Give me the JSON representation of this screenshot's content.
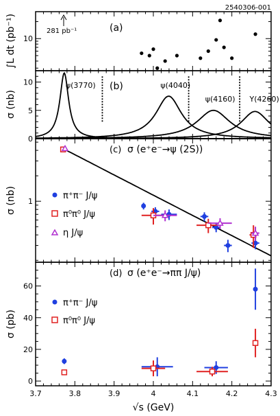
{
  "figure_id": "2540306-001",
  "x_axis": {
    "label": "√s (GeV)",
    "ticks": [
      "3.7",
      "3.8",
      "3.9",
      "4",
      "4.1",
      "4.2",
      "4.3"
    ],
    "range": [
      3.7,
      4.3
    ]
  },
  "chart_data": [
    {
      "panel": "a",
      "type": "scatter",
      "panel_label": "(a)",
      "ylabel": "∫L dt (pb⁻¹)",
      "yscale": "log",
      "ylim": [
        2.7,
        30
      ],
      "yticks": [
        "10"
      ],
      "annotation": "281 pb⁻¹",
      "annotation_x": 3.77,
      "points": [
        {
          "x": 3.97,
          "y": 5.5
        },
        {
          "x": 3.99,
          "y": 5.0
        },
        {
          "x": 4.0,
          "y": 6.5
        },
        {
          "x": 4.01,
          "y": 3.0
        },
        {
          "x": 4.03,
          "y": 4.0
        },
        {
          "x": 4.06,
          "y": 5.0
        },
        {
          "x": 4.12,
          "y": 4.5
        },
        {
          "x": 4.14,
          "y": 6.0
        },
        {
          "x": 4.16,
          "y": 9.5
        },
        {
          "x": 4.17,
          "y": 21.0
        },
        {
          "x": 4.18,
          "y": 7.0
        },
        {
          "x": 4.2,
          "y": 4.5
        },
        {
          "x": 4.26,
          "y": 12.0
        }
      ]
    },
    {
      "panel": "b",
      "type": "line",
      "panel_label": "(b)",
      "ylabel": "σ (nb)",
      "ylim": [
        0,
        12
      ],
      "yticks": [
        "0",
        "5",
        "10"
      ],
      "series": [
        {
          "name": "ψ(3770)",
          "mass": 3.773,
          "width": 0.027,
          "peak": 11.6
        },
        {
          "name": "ψ(4040)",
          "mass": 4.039,
          "width": 0.08,
          "peak": 7.5
        },
        {
          "name": "ψ(4160)",
          "mass": 4.153,
          "width": 0.103,
          "peak": 5.0
        },
        {
          "name": "Y(4260)",
          "mass": 4.259,
          "width": 0.088,
          "peak": 4.8
        }
      ],
      "dashed_x": [
        3.87,
        4.09,
        4.22
      ]
    },
    {
      "panel": "c",
      "type": "scatter",
      "panel_label": "(c)",
      "title": "σ (e⁺e⁻→ψ (2S))",
      "ylabel": "σ (nb)",
      "yscale": "log",
      "ylim": [
        0.19,
        5.5
      ],
      "yticks": [
        "1"
      ],
      "legend": [
        "π⁺π⁻ J/ψ",
        "π⁰π⁰ J/ψ",
        "η J/ψ"
      ],
      "series": [
        {
          "name": "π⁺π⁻ J/ψ",
          "color": "#1f3fe0",
          "marker": "circle",
          "points": [
            {
              "x": 3.975,
              "y": 0.88,
              "ex": 0.005,
              "ey": 0.08
            },
            {
              "x": 4.005,
              "y": 0.76,
              "ex": 0.01,
              "ey": 0.09
            },
            {
              "x": 4.04,
              "y": 0.7,
              "ex": 0.02,
              "ey": 0.1
            },
            {
              "x": 4.13,
              "y": 0.66,
              "ex": 0.01,
              "ey": 0.08
            },
            {
              "x": 4.16,
              "y": 0.49,
              "ex": 0.01,
              "ey": 0.06
            },
            {
              "x": 4.19,
              "y": 0.3,
              "ex": 0.01,
              "ey": 0.05
            },
            {
              "x": 4.26,
              "y": 0.32,
              "ex": 0.01,
              "ey": 0.05
            }
          ]
        },
        {
          "name": "π⁰π⁰ J/ψ",
          "color": "#e02020",
          "marker": "square",
          "points": [
            {
              "x": 3.77,
              "y": 4.1,
              "ex": 0.0,
              "ey": 0.2
            },
            {
              "x": 4.0,
              "y": 0.68,
              "ex": 0.03,
              "ey": 0.15
            },
            {
              "x": 4.14,
              "y": 0.52,
              "ex": 0.03,
              "ey": 0.1
            },
            {
              "x": 4.255,
              "y": 0.4,
              "ex": 0.01,
              "ey": 0.12
            }
          ]
        },
        {
          "name": "η J/ψ",
          "color": "#b030d0",
          "marker": "triangle",
          "points": [
            {
              "x": 3.775,
              "y": 4.2,
              "ex": 0.0,
              "ey": 0.2
            },
            {
              "x": 4.03,
              "y": 0.68,
              "ex": 0.03,
              "ey": 0.1
            },
            {
              "x": 4.17,
              "y": 0.55,
              "ex": 0.03,
              "ey": 0.08
            },
            {
              "x": 4.26,
              "y": 0.42,
              "ex": 0.01,
              "ey": 0.08
            }
          ]
        }
      ],
      "fit_curve": {
        "x0": 3.77,
        "y0": 4.2,
        "power": 0.023
      }
    },
    {
      "panel": "d",
      "type": "scatter",
      "panel_label": "(d)",
      "title": "σ (e⁺e⁻→ππ J/ψ)",
      "ylabel": "σ (pb)",
      "ylim": [
        -3,
        75
      ],
      "yticks": [
        "0",
        "20",
        "40",
        "60"
      ],
      "legend": [
        "π⁺π⁻ J/ψ",
        "π⁰π⁰ J/ψ"
      ],
      "series": [
        {
          "name": "π⁺π⁻ J/ψ",
          "color": "#1f3fe0",
          "marker": "circle",
          "points": [
            {
              "x": 3.773,
              "y": 12.5,
              "ex": 0.0,
              "ey": 1.8
            },
            {
              "x": 4.01,
              "y": 9.0,
              "ex": 0.04,
              "ey": 6.0
            },
            {
              "x": 4.16,
              "y": 8.5,
              "ex": 0.03,
              "ey": 4.0
            },
            {
              "x": 4.26,
              "y": 58.0,
              "ex": 0.005,
              "ey": 13.0
            }
          ]
        },
        {
          "name": "π⁰π⁰ J/ψ",
          "color": "#e02020",
          "marker": "square",
          "points": [
            {
              "x": 3.773,
              "y": 5.5,
              "ex": 0.0,
              "ey": 1.5
            },
            {
              "x": 4.0,
              "y": 8.0,
              "ex": 0.03,
              "ey": 5.0
            },
            {
              "x": 4.15,
              "y": 6.0,
              "ex": 0.04,
              "ey": 3.0
            },
            {
              "x": 4.26,
              "y": 24.0,
              "ex": 0.005,
              "ey": 9.0
            }
          ]
        }
      ]
    }
  ]
}
